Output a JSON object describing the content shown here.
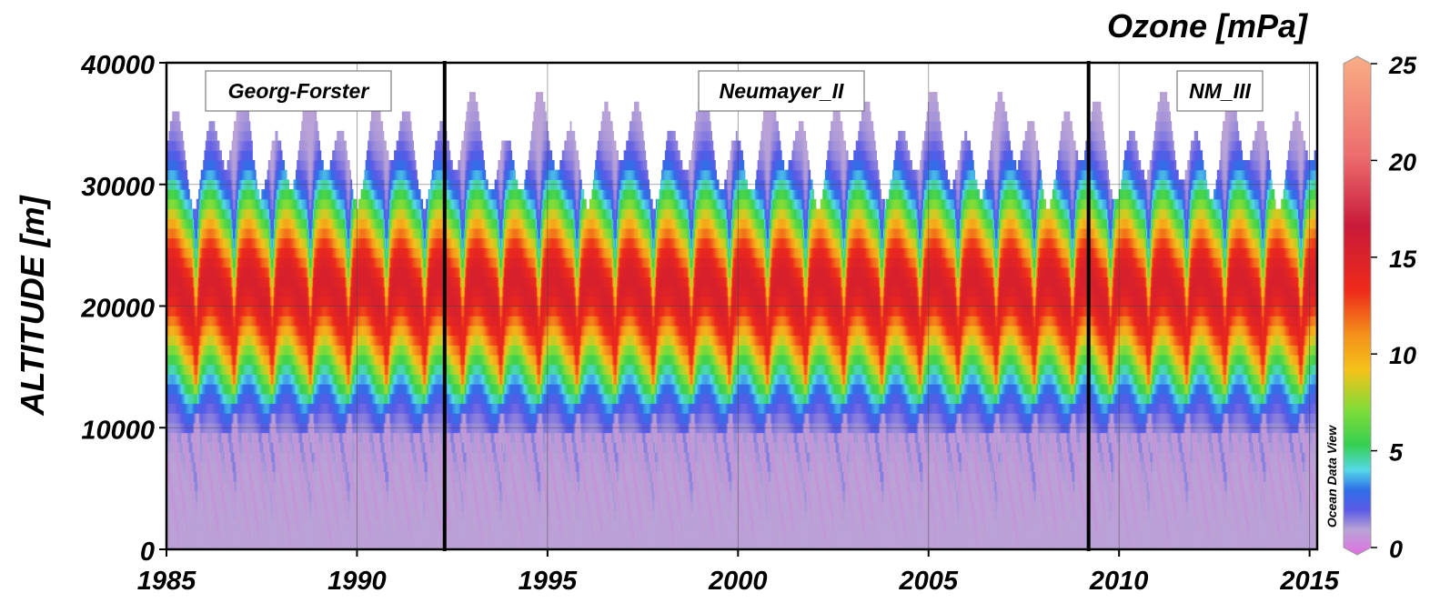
{
  "chart_data": {
    "type": "heatmap",
    "title": "Ozone [mPa]",
    "xlabel": "",
    "ylabel": "ALTITUDE [m]",
    "xlim": [
      1985,
      2015.2
    ],
    "ylim": [
      0,
      40000
    ],
    "x_ticks": [
      1985,
      1990,
      1995,
      2000,
      2005,
      2010,
      2015
    ],
    "x_tick_labels": [
      "1985",
      "1990",
      "1995",
      "2000",
      "2005",
      "2010",
      "2015"
    ],
    "y_ticks": [
      0,
      10000,
      20000,
      30000,
      40000
    ],
    "y_tick_labels": [
      "0",
      "10000",
      "20000",
      "30000",
      "40000"
    ],
    "grid": true,
    "colorbar": {
      "range": [
        0,
        25
      ],
      "ticks": [
        0,
        5,
        10,
        15,
        20,
        25
      ],
      "tick_labels": [
        "0",
        "5",
        "10",
        "15",
        "20",
        "25"
      ],
      "side_label": "Ocean Data View",
      "colors": [
        "#e070e0",
        "#b9a3d6",
        "#5a5ae6",
        "#2e6fe8",
        "#55d8e8",
        "#35d052",
        "#7fdc38",
        "#f4c21a",
        "#f4921a",
        "#ee2a1a",
        "#c81a3a",
        "#ec6d6d",
        "#f9ad85"
      ]
    },
    "station_changes": [
      1992.3,
      2009.2
    ],
    "stations": [
      {
        "name": "Georg-Forster",
        "from": 1985,
        "to": 1992.3
      },
      {
        "name": "Neumayer_II",
        "from": 1992.3,
        "to": 2009.2
      },
      {
        "name": "NM_III",
        "from": 2009.2,
        "to": 2015.2
      }
    ],
    "seasonal_cycle": {
      "period_years": 1,
      "peak_ozone_mPa": 14,
      "peak_altitude_m": 20000,
      "tropopause_altitude_m": 10000,
      "min_ozone_mPa": 1
    }
  }
}
